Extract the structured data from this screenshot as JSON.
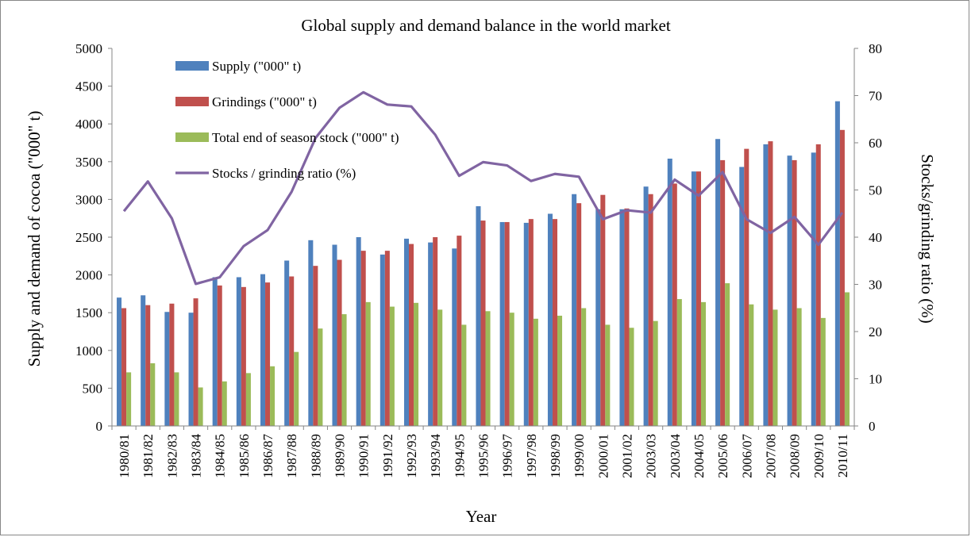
{
  "chart_data": {
    "type": "bar",
    "title": "Global supply and demand balance in the world market",
    "xlabel": "Year",
    "ylabel": "Supply and demand of cocoa (\"000\" t)",
    "y2label": "Stocks/grinding ratio (%)",
    "ylim": [
      0,
      5000
    ],
    "y2lim": [
      0,
      80
    ],
    "yticks": [
      0,
      500,
      1000,
      1500,
      2000,
      2500,
      3000,
      3500,
      4000,
      4500,
      5000
    ],
    "y2ticks": [
      0,
      10,
      20,
      30,
      40,
      50,
      60,
      70,
      80
    ],
    "grid": false,
    "legend": "top-left, inside plot",
    "categories": [
      "1980/81",
      "1981/82",
      "1982/83",
      "1983/84",
      "1984/85",
      "1985/86",
      "1986/87",
      "1987/88",
      "1988/89",
      "1989/90",
      "1990/91",
      "1991/92",
      "1992/93",
      "1993/94",
      "1994/95",
      "1995/96",
      "1996/97",
      "1997/98",
      "1998/99",
      "1999/00",
      "2000/01",
      "2001/02",
      "2003/03",
      "2003/04",
      "2004/05",
      "2005/06",
      "2006/07",
      "2007/08",
      "2008/09",
      "2009/10",
      "2010/11"
    ],
    "series": [
      {
        "name": "Supply (\"000\" t)",
        "kind": "bar",
        "axis": "left",
        "color": "#4F81BD",
        "values": [
          1700,
          1730,
          1510,
          1500,
          1970,
          1970,
          2010,
          2190,
          2460,
          2400,
          2500,
          2270,
          2480,
          2430,
          2350,
          2910,
          2700,
          2690,
          2810,
          3070,
          2870,
          2870,
          3170,
          3540,
          3370,
          3800,
          3430,
          3730,
          3580,
          3620,
          4300
        ]
      },
      {
        "name": "Grindings (\"000\" t)",
        "kind": "bar",
        "axis": "left",
        "color": "#C0504D",
        "values": [
          1560,
          1600,
          1620,
          1690,
          1860,
          1840,
          1900,
          1980,
          2120,
          2200,
          2320,
          2320,
          2410,
          2500,
          2520,
          2720,
          2700,
          2740,
          2740,
          2950,
          3060,
          2880,
          3070,
          3210,
          3370,
          3520,
          3670,
          3770,
          3520,
          3730,
          3920
        ]
      },
      {
        "name": "Total end of season stock (\"000\" t)",
        "kind": "bar",
        "axis": "left",
        "color": "#9BBB59",
        "values": [
          710,
          830,
          710,
          510,
          590,
          700,
          790,
          980,
          1290,
          1480,
          1640,
          1580,
          1630,
          1540,
          1340,
          1520,
          1500,
          1420,
          1460,
          1560,
          1340,
          1300,
          1390,
          1680,
          1640,
          1890,
          1610,
          1540,
          1560,
          1430,
          1770
        ]
      },
      {
        "name": "Stocks / grinding ratio (%)",
        "kind": "line",
        "axis": "right",
        "color": "#8064A2",
        "values": [
          45.5,
          51.8,
          44.0,
          30.1,
          31.5,
          38.1,
          41.5,
          49.6,
          61.0,
          67.4,
          70.7,
          68.1,
          67.7,
          61.7,
          53.0,
          55.9,
          55.2,
          51.9,
          53.4,
          52.8,
          43.8,
          45.7,
          45.2,
          52.2,
          48.8,
          53.8,
          43.8,
          40.9,
          44.3,
          38.4,
          45.2
        ]
      }
    ]
  }
}
